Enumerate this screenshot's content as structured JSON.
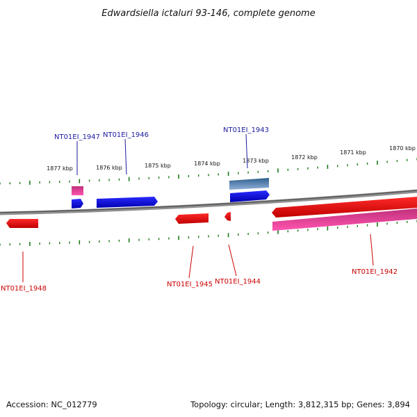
{
  "title": "Edwardsiella ictaluri 93-146, complete genome",
  "footer": {
    "accession": "Accession: NC_012779",
    "summary": "Topology: circular; Length: 3,812,315 bp; Genes: 3,894"
  },
  "colors": {
    "backbone": "#8a8a8a",
    "tick": "#1a7a1a",
    "forward_gene": "#1010e0",
    "forward_rna": "#4a7fb5",
    "reverse_gene": "#e01010",
    "reverse_pseudo": "#ff3aa0",
    "forward_label": "#1a1aa0",
    "reverse_label": "#cc0000"
  },
  "scale_labels": [
    "1877 kbp",
    "1876 kbp",
    "1875 kbp",
    "1874 kbp",
    "1873 kbp",
    "1872 kbp",
    "1871 kbp",
    "1870 kbp"
  ],
  "genes": [
    {
      "name": "NT01EI_1947",
      "strand": "forward",
      "type": "gene"
    },
    {
      "name": "NT01EI_1946",
      "strand": "forward",
      "type": "gene"
    },
    {
      "name": "NT01EI_1943",
      "strand": "forward",
      "type": "gene"
    },
    {
      "name": "NT01EI_1948",
      "strand": "reverse",
      "type": "gene"
    },
    {
      "name": "NT01EI_1945",
      "strand": "reverse",
      "type": "gene"
    },
    {
      "name": "NT01EI_1944",
      "strand": "reverse",
      "type": "gene"
    },
    {
      "name": "NT01EI_1942",
      "strand": "reverse",
      "type": "gene"
    }
  ]
}
